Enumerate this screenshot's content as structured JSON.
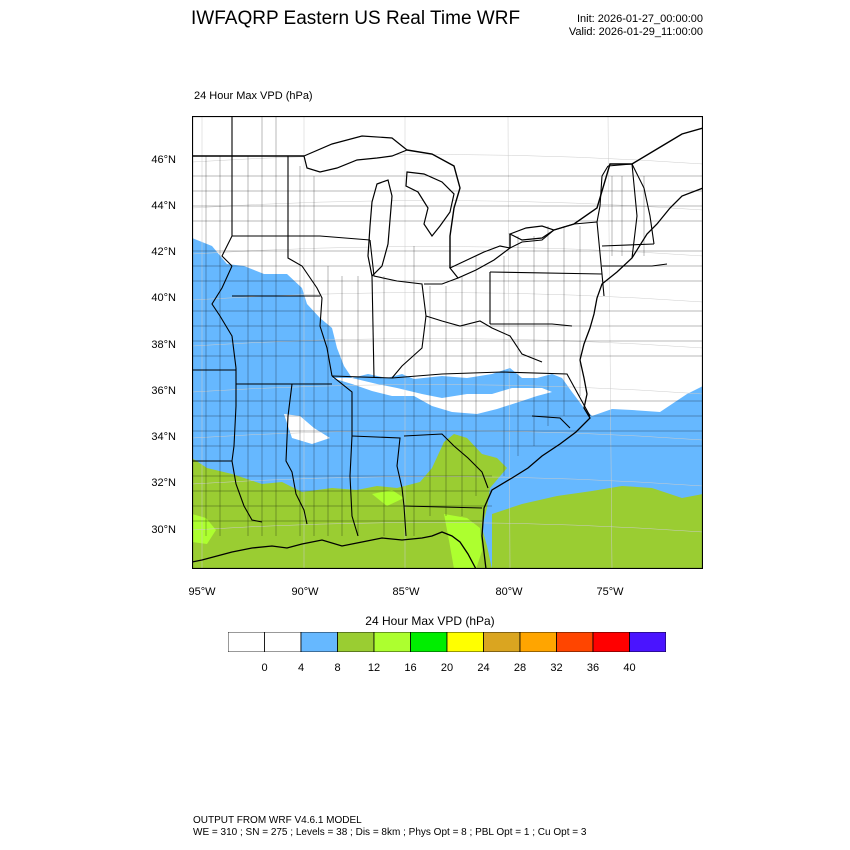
{
  "header": {
    "title": "IWFAQRP Eastern US Real Time WRF",
    "init": "Init: 2026-01-27_00:00:00",
    "valid": "Valid: 2026-01-29_11:00:00"
  },
  "map": {
    "field_label": "24 Hour Max VPD   (hPa)",
    "lat_labels": [
      "46°N",
      "44°N",
      "42°N",
      "40°N",
      "38°N",
      "36°N",
      "34°N",
      "32°N",
      "30°N"
    ],
    "lon_labels": [
      "95°W",
      "90°W",
      "85°W",
      "80°W",
      "75°W"
    ],
    "colors": {
      "land_below_4": "#ffffff",
      "range_4_8": "#66b8ff",
      "range_8_12": "#9acd32",
      "range_12_16": "#adff2f",
      "boundary": "#000000"
    }
  },
  "colorbar": {
    "title": "24 Hour Max VPD  (hPa)",
    "ticks": [
      "0",
      "4",
      "8",
      "12",
      "16",
      "20",
      "24",
      "28",
      "32",
      "36",
      "40"
    ],
    "colors": [
      "#ffffff",
      "#ffffff",
      "#66b8ff",
      "#9acd32",
      "#adff2f",
      "#00ee00",
      "#ffff00",
      "#daa520",
      "#ffa500",
      "#ff4500",
      "#ff0000",
      "#4a14ff"
    ]
  },
  "footer": {
    "line1": "OUTPUT FROM WRF V4.6.1 MODEL",
    "line2": "WE = 310 ; SN = 275 ; Levels = 38 ; Dis = 8km ; Phys Opt = 8 ; PBL Opt = 1 ; Cu Opt = 3"
  }
}
